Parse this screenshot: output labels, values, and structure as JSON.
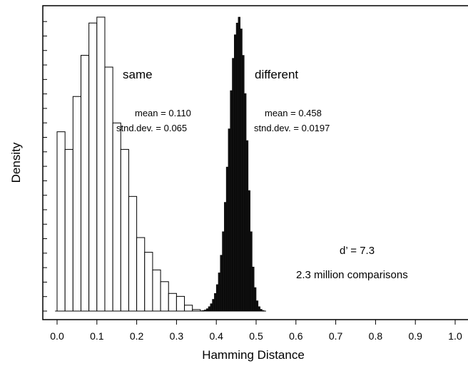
{
  "chart_data": {
    "type": "histogram",
    "xlabel": "Hamming Distance",
    "ylabel": "Density",
    "xlim": [
      -0.05,
      1.02
    ],
    "x_ticks": [
      "0.0",
      "0.1",
      "0.2",
      "0.3",
      "0.4",
      "0.5",
      "0.6",
      "0.7",
      "0.8",
      "0.9",
      "1.0"
    ],
    "x_tick_values": [
      0.0,
      0.1,
      0.2,
      0.3,
      0.4,
      0.5,
      0.6,
      0.7,
      0.8,
      0.9,
      1.0
    ],
    "y_axis_minor_ticks": 21,
    "y_axis_max": 1.0,
    "series": [
      {
        "name": "same",
        "fill": "#ffffff",
        "stroke": "#000000",
        "bin_width": 0.02,
        "bins_start": [
          0.0,
          0.02,
          0.04,
          0.06,
          0.08,
          0.1,
          0.12,
          0.14,
          0.16,
          0.18,
          0.2,
          0.22,
          0.24,
          0.26,
          0.28,
          0.3,
          0.32,
          0.34
        ],
        "values": [
          0.61,
          0.55,
          0.73,
          0.87,
          0.98,
          1.0,
          0.83,
          0.64,
          0.55,
          0.39,
          0.25,
          0.2,
          0.14,
          0.1,
          0.06,
          0.05,
          0.02,
          0.005
        ]
      },
      {
        "name": "different",
        "fill": "#111111",
        "stroke": "#000000",
        "bin_width": 0.005,
        "bins_start": [
          0.36,
          0.365,
          0.37,
          0.375,
          0.38,
          0.385,
          0.39,
          0.395,
          0.4,
          0.405,
          0.41,
          0.415,
          0.42,
          0.425,
          0.43,
          0.435,
          0.44,
          0.445,
          0.45,
          0.455,
          0.46,
          0.465,
          0.47,
          0.475,
          0.48,
          0.485,
          0.49,
          0.495,
          0.5,
          0.505,
          0.51,
          0.515
        ],
        "values": [
          0.001,
          0.002,
          0.004,
          0.008,
          0.015,
          0.025,
          0.04,
          0.06,
          0.09,
          0.13,
          0.19,
          0.27,
          0.37,
          0.49,
          0.62,
          0.75,
          0.86,
          0.94,
          0.98,
          1.0,
          0.96,
          0.87,
          0.74,
          0.58,
          0.41,
          0.27,
          0.15,
          0.08,
          0.035,
          0.015,
          0.006,
          0.002
        ]
      }
    ],
    "annotations": {
      "same_label": "same",
      "different_label": "different",
      "same_mean": "mean = 0.110",
      "same_sd": "stnd.dev. = 0.065",
      "diff_mean": "mean = 0.458",
      "diff_sd": "stnd.dev. = 0.0197",
      "dprime": "d’ = 7.3",
      "comparisons": "2.3 million comparisons"
    }
  }
}
